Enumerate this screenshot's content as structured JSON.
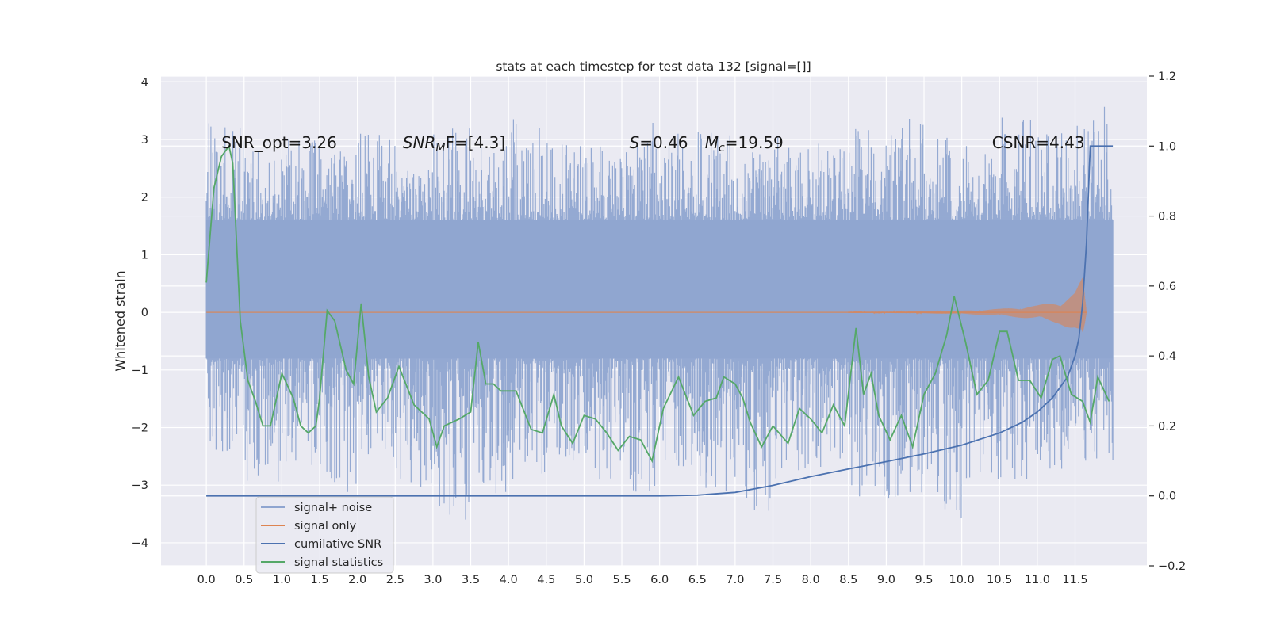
{
  "chart_data": {
    "type": "line",
    "title": "stats at each timestep for test data 132 [signal=[]]",
    "xlabel": "",
    "ylabel": "Whitened strain",
    "y2label": "",
    "xlim": [
      -0.6,
      12.45
    ],
    "ylim": [
      -4.4,
      4.1
    ],
    "y2lim": [
      -0.2,
      1.2
    ],
    "grid": true,
    "x_ticks": [
      0.0,
      0.5,
      1.0,
      1.5,
      2.0,
      2.5,
      3.0,
      3.5,
      4.0,
      4.5,
      5.0,
      5.5,
      6.0,
      6.5,
      7.0,
      7.5,
      8.0,
      8.5,
      9.0,
      9.5,
      10.0,
      10.5,
      11.0,
      11.5
    ],
    "x_tick_labels": [
      "0.0",
      "0.5",
      "1.0",
      "1.5",
      "2.0",
      "2.5",
      "3.0",
      "3.5",
      "4.0",
      "4.5",
      "5.0",
      "5.5",
      "6.0",
      "6.5",
      "7.0",
      "7.5",
      "8.0",
      "8.5",
      "9.0",
      "9.5",
      "10.0",
      "10.5",
      "11.0",
      "11.5"
    ],
    "y_ticks": [
      4,
      3,
      2,
      1,
      0,
      -1,
      -2,
      -3,
      -4
    ],
    "y_tick_labels": [
      "4",
      "3",
      "2",
      "1",
      "0",
      "−1",
      "−2",
      "−3",
      "−4"
    ],
    "y2_ticks": [
      1.2,
      1.0,
      0.8,
      0.6,
      0.4,
      0.2,
      0.0,
      -0.2
    ],
    "y2_tick_labels": [
      "1.2",
      "1.0",
      "0.8",
      "0.6",
      "0.4",
      "0.2",
      "0.0",
      "−0.2"
    ],
    "annotations": [
      {
        "text": "SNR_opt=3.26",
        "x": 0.2,
        "y": 2.85
      },
      {
        "text": "SNR",
        "sub": "M",
        "suffix": "F=[4.3]",
        "italic": true,
        "x": 2.6,
        "y": 2.85
      },
      {
        "text": "S",
        "suffix": "=0.46",
        "italic": true,
        "x": 5.6,
        "y": 2.85
      },
      {
        "text": "M",
        "sub": "c",
        "suffix": "=19.59",
        "italic": true,
        "x": 6.6,
        "y": 2.85
      },
      {
        "text": "CSNR=4.43",
        "x": 10.4,
        "y": 2.85
      }
    ],
    "legend": {
      "position": "lower-left",
      "entries": [
        {
          "label": "signal+ noise",
          "color": "#8fa5d0"
        },
        {
          "label": "signal only",
          "color": "#dd8452"
        },
        {
          "label": "cumilative SNR",
          "color": "#4c72b0"
        },
        {
          "label": "signal statistics",
          "color": "#55a868"
        }
      ]
    },
    "series": [
      {
        "name": "signal+ noise",
        "axis": "left",
        "color": "#8fa5d0",
        "x_range": [
          0.0,
          12.0
        ],
        "envelope_upper": [
          3.3,
          2.9,
          3.0,
          2.8,
          3.1,
          2.7,
          3.2,
          2.9,
          3.4,
          3.0,
          2.9,
          3.3,
          3.1,
          3.2,
          2.8,
          3.3,
          3.0,
          3.2,
          3.5,
          3.1,
          2.9,
          3.4,
          3.2,
          3.6
        ],
        "envelope_lower": [
          -2.6,
          -3.0,
          -2.8,
          -3.2,
          -2.7,
          -3.1,
          -3.6,
          -3.3,
          -2.9,
          -2.6,
          -3.0,
          -3.2,
          -2.8,
          -3.1,
          -3.5,
          -2.9,
          -2.7,
          -3.2,
          -3.3,
          -3.6,
          -2.9,
          -3.0,
          -2.8,
          -2.6
        ],
        "core_range": [
          -0.8,
          1.6
        ]
      },
      {
        "name": "signal only",
        "axis": "left",
        "color": "#dd8452",
        "x": [
          0.0,
          9.0,
          10.0,
          10.5,
          11.0,
          11.3,
          11.5,
          11.6,
          11.65
        ],
        "amplitude": [
          0.0,
          0.01,
          0.03,
          0.06,
          0.12,
          0.2,
          0.35,
          0.6,
          0.0
        ]
      },
      {
        "name": "cumilative SNR",
        "axis": "right",
        "color": "#4c72b0",
        "x": [
          0.0,
          2.0,
          4.0,
          6.0,
          6.5,
          7.0,
          7.5,
          8.0,
          8.5,
          9.0,
          9.5,
          10.0,
          10.5,
          10.8,
          11.0,
          11.2,
          11.4,
          11.5,
          11.55,
          11.6,
          11.65,
          11.7,
          11.8,
          12.0
        ],
        "values": [
          0.0,
          0.0,
          0.0,
          0.0,
          0.002,
          0.01,
          0.03,
          0.055,
          0.077,
          0.098,
          0.12,
          0.145,
          0.18,
          0.21,
          0.24,
          0.28,
          0.34,
          0.4,
          0.45,
          0.55,
          0.72,
          1.0,
          1.0,
          1.0
        ]
      },
      {
        "name": "signal statistics",
        "axis": "right",
        "color": "#55a868",
        "x": [
          0.0,
          0.1,
          0.2,
          0.3,
          0.35,
          0.45,
          0.55,
          0.65,
          0.75,
          0.85,
          1.0,
          1.15,
          1.25,
          1.35,
          1.45,
          1.5,
          1.6,
          1.7,
          1.85,
          1.95,
          2.05,
          2.15,
          2.25,
          2.4,
          2.55,
          2.75,
          2.95,
          3.05,
          3.15,
          3.35,
          3.5,
          3.6,
          3.7,
          3.8,
          3.9,
          4.1,
          4.3,
          4.45,
          4.6,
          4.7,
          4.85,
          5.0,
          5.15,
          5.3,
          5.45,
          5.6,
          5.75,
          5.9,
          6.05,
          6.25,
          6.45,
          6.6,
          6.75,
          6.85,
          7.0,
          7.1,
          7.2,
          7.35,
          7.5,
          7.7,
          7.85,
          8.0,
          8.15,
          8.3,
          8.45,
          8.6,
          8.7,
          8.8,
          8.9,
          9.05,
          9.2,
          9.35,
          9.5,
          9.65,
          9.8,
          9.9,
          10.05,
          10.2,
          10.35,
          10.5,
          10.6,
          10.75,
          10.9,
          11.05,
          11.2,
          11.3,
          11.45,
          11.6,
          11.7,
          11.8,
          11.95
        ],
        "values": [
          0.61,
          0.88,
          0.97,
          1.0,
          0.95,
          0.5,
          0.33,
          0.27,
          0.2,
          0.2,
          0.35,
          0.28,
          0.2,
          0.18,
          0.2,
          0.28,
          0.53,
          0.5,
          0.36,
          0.32,
          0.55,
          0.34,
          0.24,
          0.28,
          0.37,
          0.26,
          0.22,
          0.14,
          0.2,
          0.22,
          0.24,
          0.44,
          0.32,
          0.32,
          0.3,
          0.3,
          0.19,
          0.18,
          0.29,
          0.2,
          0.15,
          0.23,
          0.22,
          0.18,
          0.13,
          0.17,
          0.16,
          0.1,
          0.25,
          0.34,
          0.23,
          0.27,
          0.28,
          0.34,
          0.32,
          0.28,
          0.21,
          0.14,
          0.2,
          0.15,
          0.25,
          0.22,
          0.18,
          0.26,
          0.2,
          0.48,
          0.29,
          0.35,
          0.23,
          0.16,
          0.23,
          0.14,
          0.29,
          0.35,
          0.46,
          0.57,
          0.44,
          0.29,
          0.33,
          0.47,
          0.47,
          0.33,
          0.33,
          0.28,
          0.39,
          0.4,
          0.29,
          0.27,
          0.21,
          0.34,
          0.27
        ]
      }
    ]
  }
}
